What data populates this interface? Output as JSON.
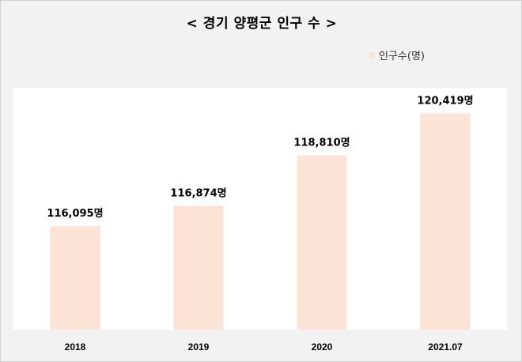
{
  "chart_data": {
    "type": "bar",
    "title": "< 경기 양평군 인구 수 >",
    "categories": [
      "2018",
      "2019",
      "2020",
      "2021.07"
    ],
    "series": [
      {
        "name": "인구수(명)",
        "values": [
          116095,
          116874,
          118810,
          120419
        ],
        "labels": [
          "116,095명",
          "116,874명",
          "118,810명",
          "120,419명"
        ],
        "color": "#fbe3d5"
      }
    ],
    "xlabel": "",
    "ylabel": "",
    "ylim": [
      112130,
      121400
    ],
    "grid": false,
    "legend_position": "top-right"
  }
}
